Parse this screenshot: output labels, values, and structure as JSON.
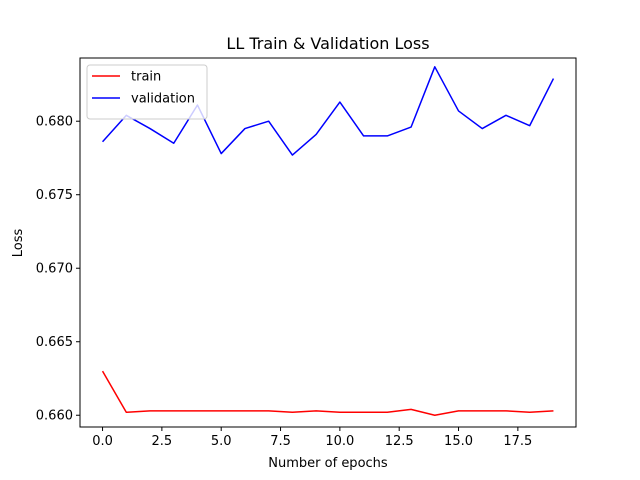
{
  "chart_data": {
    "type": "line",
    "title": "LL Train & Validation Loss",
    "xlabel": "Number of epochs",
    "ylabel": "Loss",
    "xlim": [
      -0.95,
      19.95
    ],
    "ylim": [
      0.6592,
      0.6843
    ],
    "xticks": [
      0.0,
      2.5,
      5.0,
      7.5,
      10.0,
      12.5,
      15.0,
      17.5
    ],
    "xtick_labels": [
      "0.0",
      "2.5",
      "5.0",
      "7.5",
      "10.0",
      "12.5",
      "15.0",
      "17.5"
    ],
    "yticks": [
      0.66,
      0.665,
      0.67,
      0.675,
      0.68
    ],
    "ytick_labels": [
      "0.660",
      "0.665",
      "0.670",
      "0.675",
      "0.680"
    ],
    "legend_position": "top-left",
    "x": [
      0,
      1,
      2,
      3,
      4,
      5,
      6,
      7,
      8,
      9,
      10,
      11,
      12,
      13,
      14,
      15,
      16,
      17,
      18,
      19
    ],
    "series": [
      {
        "name": "train",
        "color": "#ff0000",
        "values": [
          0.663,
          0.6602,
          0.6603,
          0.6603,
          0.6603,
          0.6603,
          0.6603,
          0.6603,
          0.6602,
          0.6603,
          0.6602,
          0.6602,
          0.6602,
          0.6604,
          0.66,
          0.6603,
          0.6603,
          0.6603,
          0.6602,
          0.6603
        ]
      },
      {
        "name": "validation",
        "color": "#0000ff",
        "values": [
          0.6786,
          0.6804,
          0.6795,
          0.6785,
          0.6811,
          0.6778,
          0.6795,
          0.68,
          0.6777,
          0.6791,
          0.6813,
          0.679,
          0.679,
          0.6796,
          0.6837,
          0.6807,
          0.6795,
          0.6804,
          0.6797,
          0.6829
        ]
      }
    ]
  }
}
